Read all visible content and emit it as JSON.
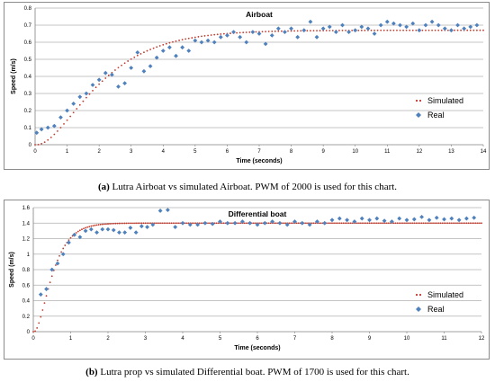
{
  "charts": [
    {
      "id": "a",
      "caption": {
        "tag": "(a)",
        "text": "Lutra Airboat vs simulated Airboat. PWM of 2000 is used for this chart."
      },
      "legend": {
        "simulated": "Simulated",
        "real": "Real"
      }
    },
    {
      "id": "b",
      "caption": {
        "tag": "(b)",
        "text": "Lutra prop vs simulated Differential boat. PWM of 1700 is used for this chart."
      },
      "legend": {
        "simulated": "Simulated",
        "real": "Real"
      }
    }
  ],
  "colors": {
    "simulated": "#c0392b",
    "real": "#4f81bd",
    "grid": "#b0b0b0",
    "axis": "#808080"
  },
  "chart_data": [
    {
      "type": "scatter",
      "title": "Airboat",
      "xlabel": "Time (seconds)",
      "ylabel": "Speed (m/s)",
      "xlim": [
        0,
        14
      ],
      "ylim": [
        0,
        0.8
      ],
      "xticks": [
        0,
        1,
        2,
        3,
        4,
        5,
        6,
        7,
        8,
        9,
        10,
        11,
        12,
        13,
        14
      ],
      "yticks": [
        0,
        0.1,
        0.2,
        0.3,
        0.4,
        0.5,
        0.6,
        0.7,
        0.8
      ],
      "ytick_labels": [
        "0",
        "0.1",
        "0.2",
        "0.3",
        "0.4",
        "0.5",
        "0.6",
        "0.7",
        "0.8"
      ],
      "grid": "horizontal",
      "legend_position": "right",
      "series": [
        {
          "name": "Simulated",
          "model": {
            "kind": "second-order-step",
            "final": 0.67,
            "tau": 1.1,
            "lag": 0.05
          },
          "x_start": 0,
          "x_end": 14,
          "x_step": 0.1
        },
        {
          "name": "Real",
          "x": [
            0.05,
            0.2,
            0.4,
            0.6,
            0.8,
            1.0,
            1.2,
            1.4,
            1.6,
            1.8,
            2.0,
            2.2,
            2.4,
            2.6,
            2.8,
            3.0,
            3.2,
            3.4,
            3.6,
            3.8,
            4.0,
            4.2,
            4.4,
            4.6,
            4.8,
            5.0,
            5.2,
            5.4,
            5.6,
            5.8,
            6.0,
            6.2,
            6.4,
            6.6,
            6.8,
            7.0,
            7.2,
            7.4,
            7.6,
            7.8,
            8.0,
            8.2,
            8.4,
            8.6,
            8.8,
            9.0,
            9.2,
            9.4,
            9.6,
            9.8,
            10.0,
            10.2,
            10.4,
            10.6,
            10.8,
            11.0,
            11.2,
            11.4,
            11.6,
            11.8,
            12.0,
            12.2,
            12.4,
            12.6,
            12.8,
            13.0,
            13.2,
            13.4,
            13.6,
            13.8
          ],
          "y": [
            0.07,
            0.09,
            0.1,
            0.11,
            0.16,
            0.2,
            0.24,
            0.28,
            0.3,
            0.35,
            0.38,
            0.42,
            0.41,
            0.34,
            0.36,
            0.45,
            0.54,
            0.43,
            0.46,
            0.51,
            0.55,
            0.57,
            0.52,
            0.57,
            0.55,
            0.61,
            0.6,
            0.61,
            0.6,
            0.63,
            0.64,
            0.66,
            0.63,
            0.6,
            0.66,
            0.65,
            0.59,
            0.64,
            0.68,
            0.66,
            0.68,
            0.63,
            0.67,
            0.72,
            0.63,
            0.68,
            0.69,
            0.66,
            0.7,
            0.66,
            0.67,
            0.69,
            0.68,
            0.65,
            0.7,
            0.72,
            0.71,
            0.7,
            0.69,
            0.71,
            0.67,
            0.7,
            0.72,
            0.7,
            0.68,
            0.67,
            0.7,
            0.68,
            0.69,
            0.7
          ]
        }
      ]
    },
    {
      "type": "scatter",
      "title": "Differential boat",
      "xlabel": "Time (seconds)",
      "ylabel": "Speed (m/s)",
      "xlim": [
        0,
        12
      ],
      "ylim": [
        0,
        1.6
      ],
      "xticks": [
        0,
        1,
        2,
        3,
        4,
        5,
        6,
        7,
        8,
        9,
        10,
        11,
        12
      ],
      "yticks": [
        0,
        0.2,
        0.4,
        0.6,
        0.8,
        1.0,
        1.2,
        1.4,
        1.6
      ],
      "ytick_labels": [
        "0",
        "0.2",
        "0.4",
        "0.6",
        "0.8",
        "1",
        "1.2",
        "1.4",
        "1.6"
      ],
      "grid": "horizontal",
      "legend_position": "right",
      "series": [
        {
          "name": "Simulated",
          "model": {
            "kind": "second-order-step",
            "final": 1.4,
            "tau": 0.28,
            "lag": 0.02
          },
          "x_start": 0,
          "x_end": 12,
          "x_step": 0.05
        },
        {
          "name": "Real",
          "x": [
            0.2,
            0.35,
            0.5,
            0.65,
            0.8,
            0.95,
            1.1,
            1.25,
            1.4,
            1.55,
            1.7,
            1.85,
            2.0,
            2.15,
            2.3,
            2.45,
            2.6,
            2.75,
            2.9,
            3.05,
            3.2,
            3.4,
            3.6,
            3.8,
            4.0,
            4.2,
            4.4,
            4.6,
            4.8,
            5.0,
            5.2,
            5.4,
            5.6,
            5.8,
            6.0,
            6.2,
            6.4,
            6.6,
            6.8,
            7.0,
            7.2,
            7.4,
            7.6,
            7.8,
            8.0,
            8.2,
            8.4,
            8.6,
            8.8,
            9.0,
            9.2,
            9.4,
            9.6,
            9.8,
            10.0,
            10.2,
            10.4,
            10.6,
            10.8,
            11.0,
            11.2,
            11.4,
            11.6,
            11.8
          ],
          "y": [
            0.48,
            0.55,
            0.8,
            0.88,
            1.0,
            1.15,
            1.25,
            1.22,
            1.3,
            1.32,
            1.28,
            1.32,
            1.32,
            1.31,
            1.28,
            1.28,
            1.34,
            1.28,
            1.36,
            1.35,
            1.38,
            1.56,
            1.57,
            1.35,
            1.4,
            1.38,
            1.38,
            1.4,
            1.39,
            1.42,
            1.4,
            1.4,
            1.42,
            1.4,
            1.38,
            1.4,
            1.42,
            1.4,
            1.38,
            1.42,
            1.4,
            1.38,
            1.42,
            1.4,
            1.44,
            1.46,
            1.44,
            1.42,
            1.46,
            1.44,
            1.46,
            1.43,
            1.42,
            1.46,
            1.44,
            1.45,
            1.48,
            1.44,
            1.47,
            1.45,
            1.46,
            1.44,
            1.46,
            1.47
          ]
        }
      ]
    }
  ]
}
